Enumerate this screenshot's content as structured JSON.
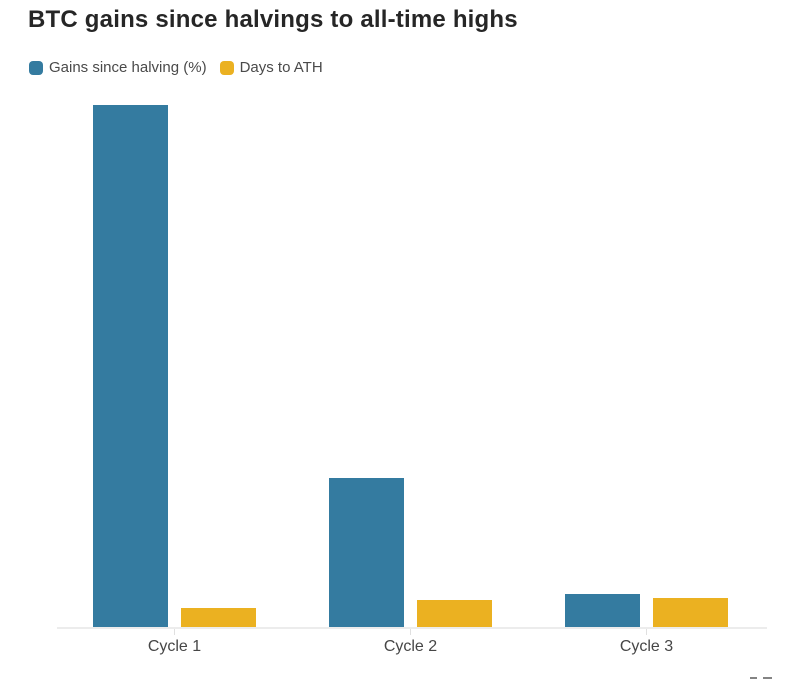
{
  "title": "BTC gains since halvings to all-time highs",
  "legend": {
    "items": [
      {
        "label": "Gains since halving (%)",
        "color": "#347BA0"
      },
      {
        "label": "Days to ATH",
        "color": "#EBB121"
      }
    ]
  },
  "chart_data": {
    "type": "bar",
    "categories": [
      "Cycle 1",
      "Cycle 2",
      "Cycle 3"
    ],
    "series": [
      {
        "name": "Gains since halving (%)",
        "color": "#347BA0",
        "values": [
          10000,
          2850,
          640
        ]
      },
      {
        "name": "Days to ATH",
        "color": "#EBB121",
        "values": [
          368,
          526,
          546
        ]
      }
    ],
    "title": "BTC gains since halvings to all-time highs",
    "xlabel": "",
    "ylabel": "",
    "ylim": [
      0,
      10200
    ],
    "grid": false,
    "y_axis_visible": false,
    "legend_position": "top-left"
  },
  "colors": {
    "title_text": "#262626",
    "legend_text": "#4A4A4A",
    "axis_label_text": "#464646",
    "axis_line": "#ECECEC",
    "tick": "#E0E0E0",
    "background": "#FFFFFF",
    "watermark": "#6E6E6E"
  }
}
